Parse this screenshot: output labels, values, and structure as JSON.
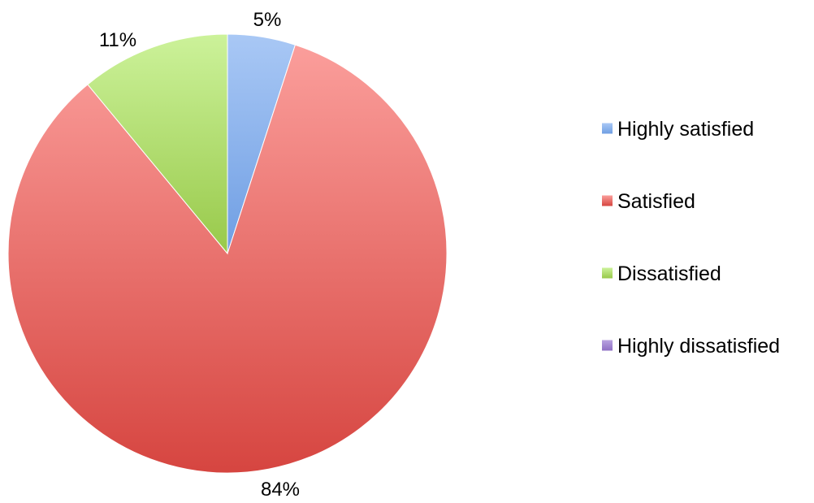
{
  "chart_data": {
    "type": "pie",
    "title": "",
    "legend_position": "right",
    "slices": [
      {
        "name": "Highly satisfied",
        "value": 5,
        "label": "5%",
        "color": "#6f9ee3",
        "color_light": "#a9c8f5"
      },
      {
        "name": "Satisfied",
        "value": 84,
        "label": "84%",
        "color": "#d64540",
        "color_light": "#fb9e9b"
      },
      {
        "name": "Dissatisfied",
        "value": 11,
        "label": "11%",
        "color": "#98c94a",
        "color_light": "#ccf29a"
      },
      {
        "name": "Highly dissatisfied",
        "value": 0,
        "label": "",
        "color": "#8e6fc4",
        "color_light": "#b9a3e0"
      }
    ]
  }
}
